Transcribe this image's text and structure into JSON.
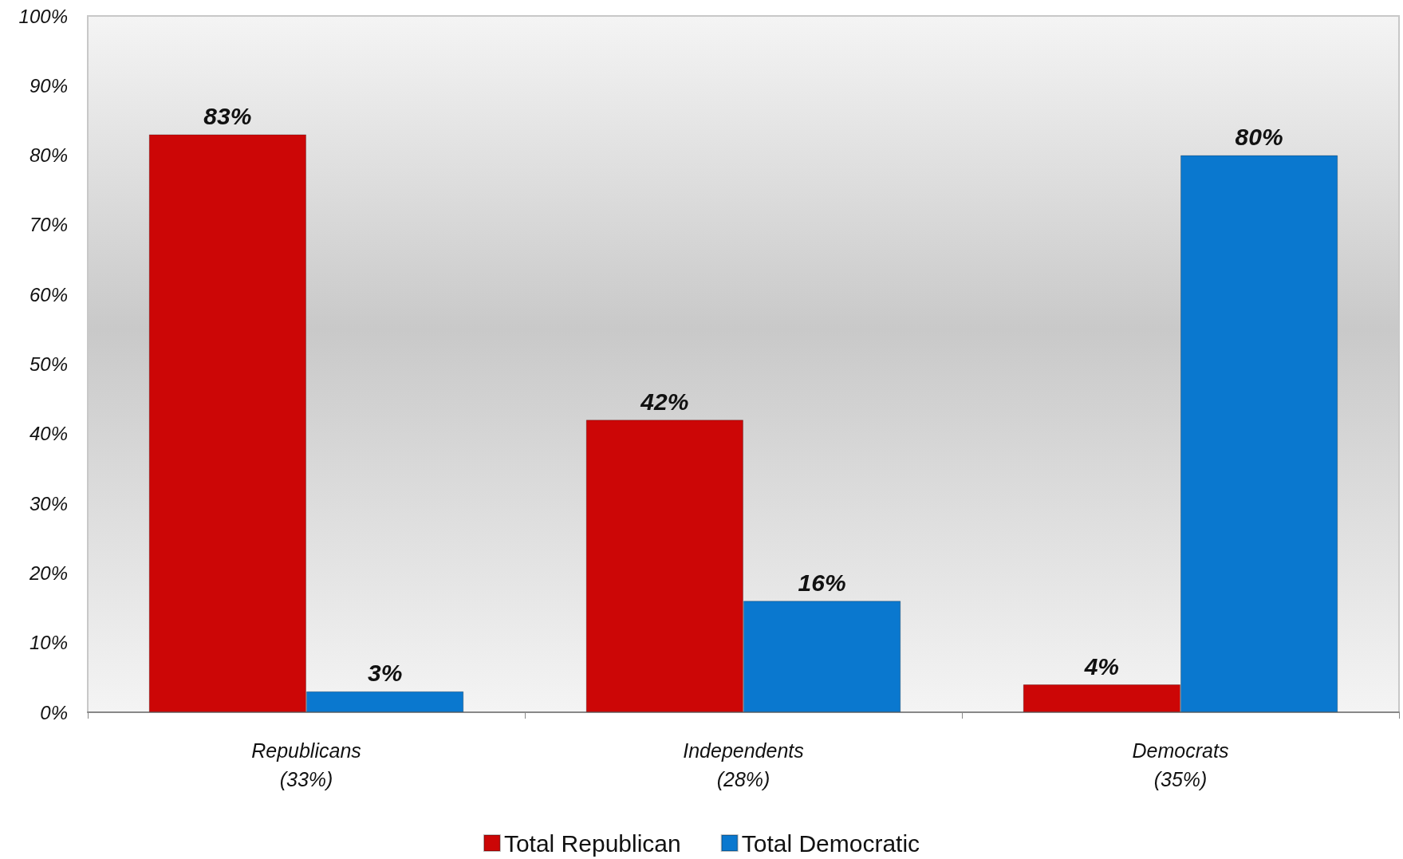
{
  "chart_data": {
    "type": "bar",
    "categories": [
      "Republicans\n(33%)",
      "Independents\n(28%)",
      "Democrats\n(35%)"
    ],
    "series": [
      {
        "name": "Total Republican",
        "color": "#cc0606",
        "values": [
          83,
          42,
          4
        ],
        "value_labels": [
          "83%",
          "42%",
          "4%"
        ]
      },
      {
        "name": "Total Democratic",
        "color": "#0a78cf",
        "values": [
          3,
          16,
          80
        ],
        "value_labels": [
          "3%",
          "16%",
          "80%"
        ]
      }
    ],
    "ylim": [
      0,
      100
    ],
    "yticks": [
      {
        "value": 0,
        "label": "0%"
      },
      {
        "value": 10,
        "label": "10%"
      },
      {
        "value": 20,
        "label": "20%"
      },
      {
        "value": 30,
        "label": "30%"
      },
      {
        "value": 40,
        "label": "40%"
      },
      {
        "value": 50,
        "label": "50%"
      },
      {
        "value": 60,
        "label": "60%"
      },
      {
        "value": 70,
        "label": "70%"
      },
      {
        "value": 80,
        "label": "80%"
      },
      {
        "value": 90,
        "label": "90%"
      },
      {
        "value": 100,
        "label": "100%"
      }
    ],
    "grid": false,
    "legend": "bottom"
  }
}
